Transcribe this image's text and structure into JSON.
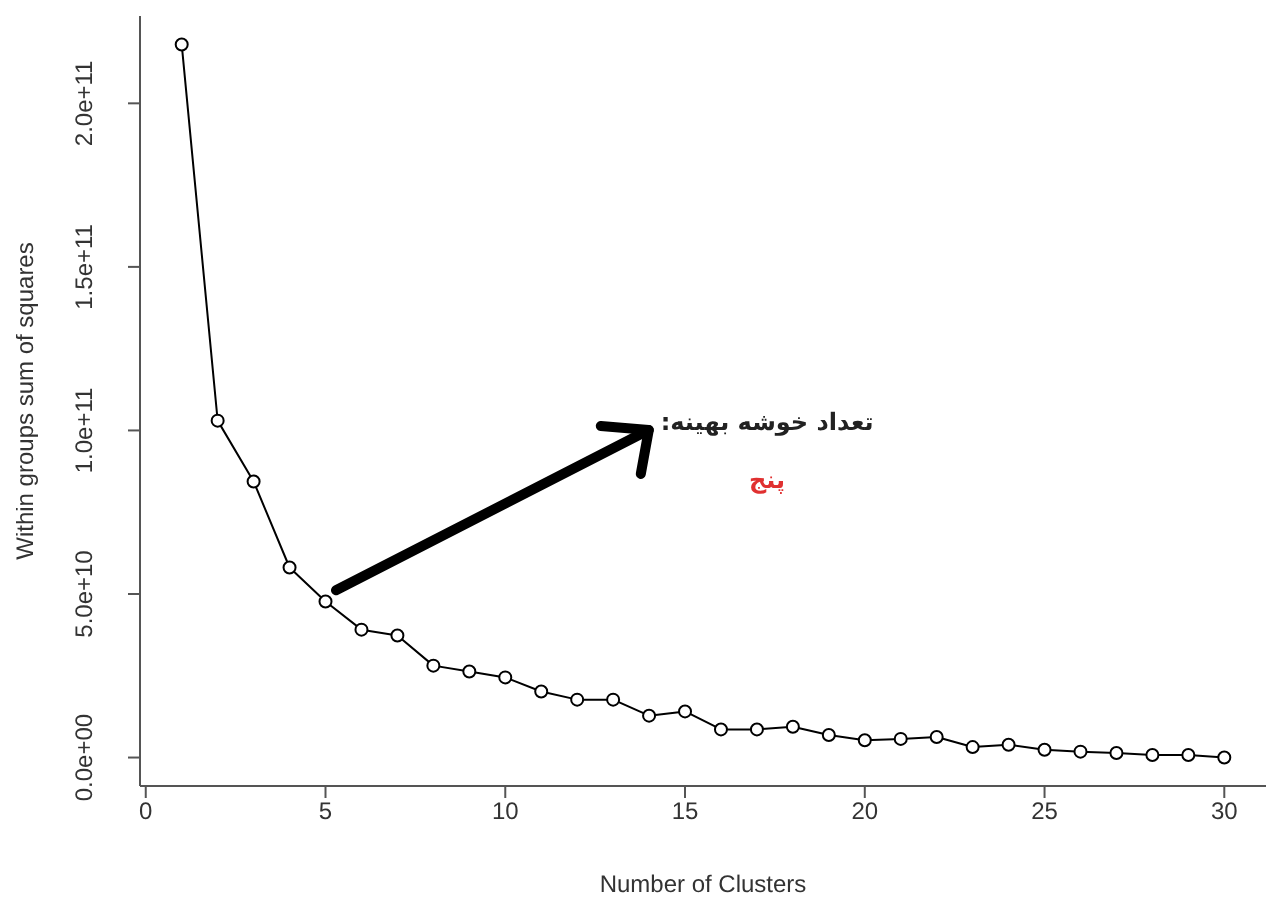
{
  "chart_data": {
    "type": "line",
    "xlabel": "Number of Clusters",
    "ylabel": "Within groups sum of squares",
    "x": [
      1,
      2,
      3,
      4,
      5,
      6,
      7,
      8,
      9,
      10,
      11,
      12,
      13,
      14,
      15,
      16,
      17,
      18,
      19,
      20,
      21,
      22,
      23,
      24,
      25,
      26,
      27,
      28,
      29,
      30
    ],
    "series": [
      {
        "color": "#000000",
        "values": [
          218000000000,
          103000000000,
          84400000000,
          58100000000,
          47700000000,
          39100000000,
          37300000000,
          28100000000,
          26300000000,
          24500000000,
          20200000000,
          17700000000,
          17700000000,
          12800000000,
          14100000000,
          8600000000,
          8600000000,
          9400000000,
          6900000000,
          5300000000,
          5700000000,
          6300000000,
          3200000000,
          3900000000,
          2400000000,
          1800000000,
          1400000000,
          800000000,
          800000000,
          0
        ]
      }
    ],
    "xlim": [
      -0.16,
      31.16
    ],
    "xticks": [
      0,
      5,
      10,
      15,
      20,
      25,
      30
    ],
    "ylim": [
      -8700000000,
      226700000000
    ],
    "yticks": [
      {
        "value": 0,
        "label": "0.0e+00"
      },
      {
        "value": 50000000000,
        "label": "5.0e+10"
      },
      {
        "value": 100000000000,
        "label": "1.0e+11"
      },
      {
        "value": 150000000000,
        "label": "1.5e+11"
      },
      {
        "value": 200000000000,
        "label": "2.0e+11"
      }
    ],
    "marker": "circle",
    "line_style": "solid",
    "grid": false,
    "legend": false,
    "annotations": [
      "تعداد خوشه بهینه:",
      "پنج"
    ]
  }
}
